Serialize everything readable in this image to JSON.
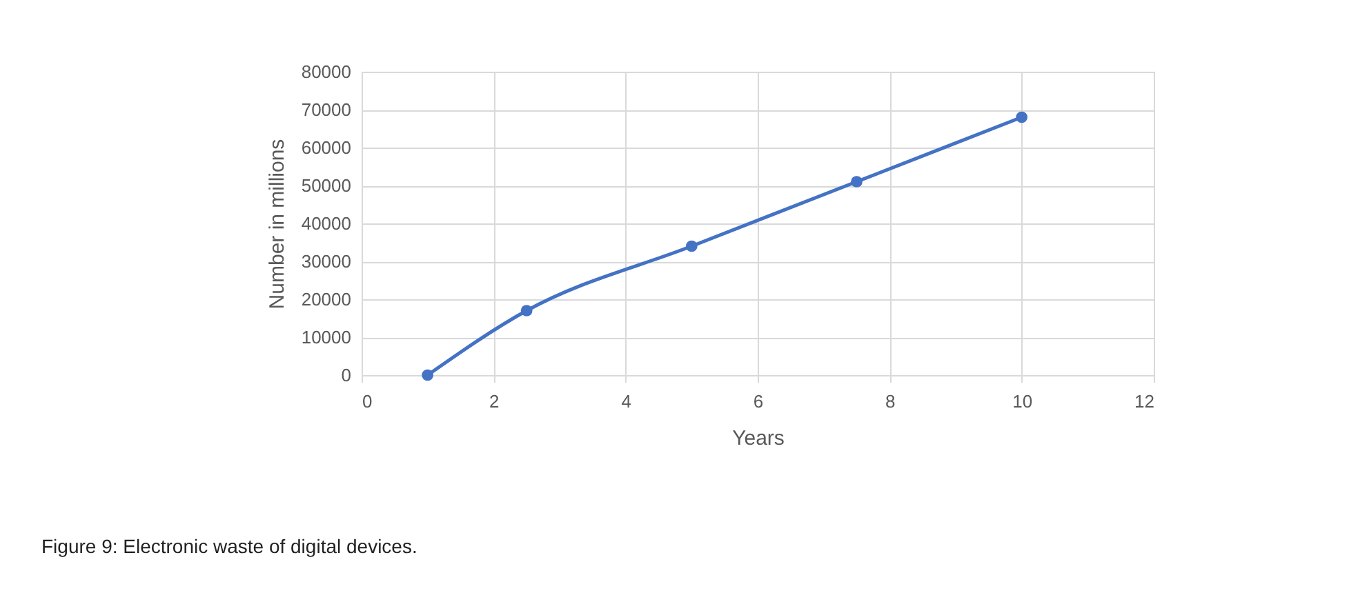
{
  "chart_data": {
    "type": "line",
    "x": [
      1,
      2.5,
      5,
      7.5,
      10
    ],
    "series": [
      {
        "color": "#4472c4",
        "values": [
          0,
          17000,
          34000,
          51000,
          68000
        ]
      }
    ],
    "xlim": [
      0,
      12
    ],
    "xticks": [
      0,
      2,
      4,
      6,
      8,
      10,
      12
    ],
    "ylim": [
      0,
      80000
    ],
    "yticks": [
      0,
      10000,
      20000,
      30000,
      40000,
      50000,
      60000,
      70000,
      80000
    ],
    "xlabel": "Years",
    "ylabel": "Number in millions",
    "grid": true,
    "marker": "circle",
    "line_style": "solid",
    "annotations": [
      "Figure 9: Electronic waste of digital devices."
    ]
  }
}
